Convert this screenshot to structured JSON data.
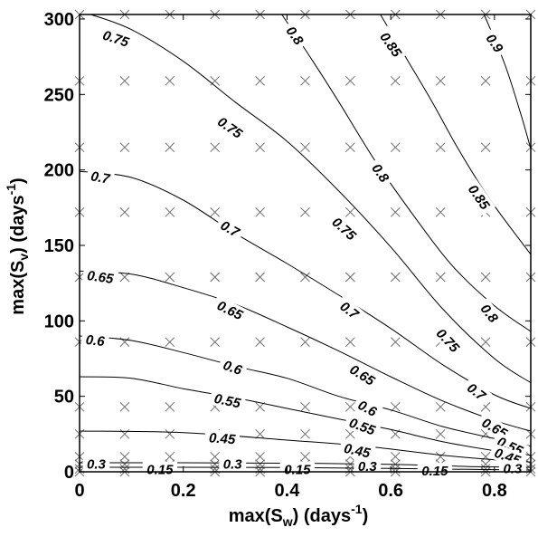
{
  "chart_data": {
    "type": "contour",
    "title": "",
    "xlabel": {
      "text": "max(S",
      "sub": "w",
      "mid": ") (days",
      "sup": "-1",
      "end": ")"
    },
    "ylabel": {
      "text": "max(S",
      "sub": "v",
      "mid": ") (days",
      "sup": "-1",
      "end": ")"
    },
    "xlim": [
      0,
      0.87
    ],
    "ylim": [
      0,
      303
    ],
    "x_ticks": [
      0,
      0.2,
      0.4,
      0.6,
      0.8
    ],
    "x_tick_labels": [
      "0",
      "0.2",
      "0.4",
      "0.6",
      "0.8"
    ],
    "y_ticks": [
      0,
      50,
      100,
      150,
      200,
      250,
      300
    ],
    "y_tick_labels": [
      "0",
      "50",
      "100",
      "150",
      "200",
      "250",
      "300"
    ],
    "grid": false,
    "sample_grid": {
      "x": [
        0,
        0.087,
        0.174,
        0.261,
        0.348,
        0.435,
        0.522,
        0.609,
        0.696,
        0.783,
        0.87
      ],
      "y": [
        0,
        2,
        5,
        10,
        25,
        43,
        86,
        129,
        172,
        215,
        259,
        303
      ]
    },
    "contours": [
      {
        "level": "0.15",
        "points": [
          [
            0,
            3
          ],
          [
            0.2,
            3
          ],
          [
            0.4,
            2.8
          ],
          [
            0.6,
            2.2
          ],
          [
            0.75,
            1.6
          ],
          [
            0.87,
            1.2
          ]
        ]
      },
      {
        "level": "0.3",
        "points": [
          [
            0,
            6
          ],
          [
            0.2,
            6
          ],
          [
            0.4,
            5.7
          ],
          [
            0.6,
            5
          ],
          [
            0.75,
            3.5
          ],
          [
            0.87,
            3
          ]
        ]
      },
      {
        "level": "0.45",
        "points": [
          [
            0,
            27
          ],
          [
            0.2,
            26
          ],
          [
            0.4,
            21
          ],
          [
            0.55,
            17
          ],
          [
            0.7,
            11
          ],
          [
            0.8,
            8
          ],
          [
            0.87,
            6.5
          ]
        ]
      },
      {
        "level": "0.55",
        "points": [
          [
            0,
            63
          ],
          [
            0.1,
            62
          ],
          [
            0.2,
            55
          ],
          [
            0.3,
            49
          ],
          [
            0.4,
            42
          ],
          [
            0.5,
            35
          ],
          [
            0.6,
            28
          ],
          [
            0.7,
            20
          ],
          [
            0.8,
            14
          ],
          [
            0.87,
            11
          ]
        ]
      },
      {
        "level": "0.6",
        "points": [
          [
            0,
            90
          ],
          [
            0.1,
            87
          ],
          [
            0.2,
            79
          ],
          [
            0.3,
            70
          ],
          [
            0.4,
            62
          ],
          [
            0.5,
            50
          ],
          [
            0.6,
            41
          ],
          [
            0.7,
            30
          ],
          [
            0.8,
            22
          ],
          [
            0.87,
            17
          ]
        ]
      },
      {
        "level": "0.65",
        "points": [
          [
            0,
            133
          ],
          [
            0.1,
            131
          ],
          [
            0.2,
            122
          ],
          [
            0.3,
            111
          ],
          [
            0.4,
            96
          ],
          [
            0.5,
            80
          ],
          [
            0.6,
            63
          ],
          [
            0.7,
            47
          ],
          [
            0.8,
            34
          ],
          [
            0.87,
            27
          ]
        ]
      },
      {
        "level": "0.7",
        "points": [
          [
            0,
            199
          ],
          [
            0.1,
            195
          ],
          [
            0.2,
            180
          ],
          [
            0.3,
            158
          ],
          [
            0.4,
            138
          ],
          [
            0.5,
            117
          ],
          [
            0.6,
            95
          ],
          [
            0.7,
            71
          ],
          [
            0.8,
            51
          ],
          [
            0.87,
            42
          ]
        ]
      },
      {
        "level": "0.75",
        "points": [
          [
            0.022,
            303
          ],
          [
            0.1,
            293
          ],
          [
            0.2,
            272
          ],
          [
            0.3,
            245
          ],
          [
            0.4,
            219
          ],
          [
            0.5,
            186
          ],
          [
            0.6,
            149
          ],
          [
            0.7,
            108
          ],
          [
            0.8,
            75
          ],
          [
            0.87,
            59
          ]
        ]
      },
      {
        "level": "0.8",
        "points": [
          [
            0.39,
            303
          ],
          [
            0.45,
            272
          ],
          [
            0.5,
            245
          ],
          [
            0.57,
            206
          ],
          [
            0.65,
            167
          ],
          [
            0.72,
            136
          ],
          [
            0.8,
            110
          ],
          [
            0.87,
            93
          ]
        ]
      },
      {
        "level": "0.85",
        "points": [
          [
            0.58,
            303
          ],
          [
            0.63,
            274
          ],
          [
            0.68,
            245
          ],
          [
            0.73,
            214
          ],
          [
            0.79,
            181
          ],
          [
            0.87,
            144
          ]
        ]
      },
      {
        "level": "0.9",
        "points": [
          [
            0.78,
            303
          ],
          [
            0.82,
            270
          ],
          [
            0.85,
            238
          ],
          [
            0.87,
            214
          ]
        ]
      }
    ],
    "labels": [
      {
        "text": "0.75",
        "x": 0.07,
        "y": 287,
        "angle": 18
      },
      {
        "text": "0.8",
        "x": 0.415,
        "y": 289,
        "angle": 55
      },
      {
        "text": "0.85",
        "x": 0.6,
        "y": 283,
        "angle": 55
      },
      {
        "text": "0.9",
        "x": 0.8,
        "y": 284,
        "angle": 55
      },
      {
        "text": "0.75",
        "x": 0.29,
        "y": 228,
        "angle": 35
      },
      {
        "text": "0.8",
        "x": 0.58,
        "y": 198,
        "angle": 55
      },
      {
        "text": "0.85",
        "x": 0.77,
        "y": 182,
        "angle": 55
      },
      {
        "text": "0.7",
        "x": 0.04,
        "y": 195,
        "angle": 10
      },
      {
        "text": "0.7",
        "x": 0.29,
        "y": 161,
        "angle": 30
      },
      {
        "text": "0.75",
        "x": 0.51,
        "y": 161,
        "angle": 42
      },
      {
        "text": "0.65",
        "x": 0.04,
        "y": 129,
        "angle": 8
      },
      {
        "text": "0.65",
        "x": 0.29,
        "y": 107,
        "angle": 26
      },
      {
        "text": "0.7",
        "x": 0.52,
        "y": 107,
        "angle": 38
      },
      {
        "text": "0.8",
        "x": 0.79,
        "y": 105,
        "angle": 52
      },
      {
        "text": "0.75",
        "x": 0.71,
        "y": 87,
        "angle": 47
      },
      {
        "text": "0.6",
        "x": 0.03,
        "y": 87,
        "angle": 6
      },
      {
        "text": "0.6",
        "x": 0.295,
        "y": 69,
        "angle": 20
      },
      {
        "text": "0.65",
        "x": 0.545,
        "y": 64,
        "angle": 32
      },
      {
        "text": "0.7",
        "x": 0.765,
        "y": 53,
        "angle": 38
      },
      {
        "text": "0.55",
        "x": 0.285,
        "y": 47,
        "angle": 12
      },
      {
        "text": "0.6",
        "x": 0.555,
        "y": 42,
        "angle": 28
      },
      {
        "text": "0.55",
        "x": 0.545,
        "y": 30,
        "angle": 20
      },
      {
        "text": "0.65",
        "x": 0.8,
        "y": 29,
        "angle": 30
      },
      {
        "text": "0.45",
        "x": 0.275,
        "y": 22,
        "angle": 4
      },
      {
        "text": "0.45",
        "x": 0.535,
        "y": 14,
        "angle": 12
      },
      {
        "text": "0.55",
        "x": 0.83,
        "y": 17,
        "angle": 25
      },
      {
        "text": "0.45",
        "x": 0.825,
        "y": 10,
        "angle": 20
      },
      {
        "text": "0.3",
        "x": 0.032,
        "y": 5,
        "angle": 0
      },
      {
        "text": "0.15",
        "x": 0.155,
        "y": 1.5,
        "angle": 0
      },
      {
        "text": "0.3",
        "x": 0.295,
        "y": 5,
        "angle": 0
      },
      {
        "text": "0.15",
        "x": 0.42,
        "y": 1.5,
        "angle": 0
      },
      {
        "text": "0.3",
        "x": 0.555,
        "y": 3.5,
        "angle": 0
      },
      {
        "text": "0.15",
        "x": 0.685,
        "y": 0.5,
        "angle": 0
      },
      {
        "text": "0.3",
        "x": 0.835,
        "y": 2.2,
        "angle": 0
      }
    ]
  }
}
